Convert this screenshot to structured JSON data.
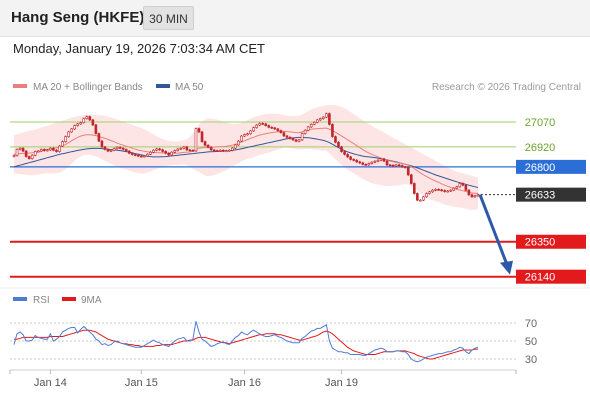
{
  "header": {
    "title": "Hang Seng (HKFE)",
    "interval": "30 MIN",
    "datetime": "Monday, January 19, 2026 7:03:34 AM CET"
  },
  "colors": {
    "ma20": "#ec7f7b",
    "bollinger_fill": "#fbe0df",
    "ma50": "#33579a",
    "candle": "#c0262c",
    "resistance": "#9fcf6b",
    "pivot": "#2b6fd6",
    "support": "#e31a1c",
    "last_price_bg": "#333333",
    "arrow": "#2d5aa8",
    "rsi": "#4f7ad6",
    "rsi_ma": "#e31a1c"
  },
  "chart_data": [
    {
      "type": "candlestick",
      "legend": [
        {
          "label": "MA 20 + Bollinger Bands",
          "color_key": "ma20"
        },
        {
          "label": "MA 50",
          "color_key": "ma50"
        }
      ],
      "watermark": "Research © 2026 Trading Central",
      "ylim": [
        26060,
        27250
      ],
      "x_ticks": [
        "Jan 14",
        "Jan 15",
        "Jan 16",
        "Jan 19"
      ],
      "levels": [
        {
          "value": 27070,
          "label": "27070",
          "kind": "resistance"
        },
        {
          "value": 26920,
          "label": "26920",
          "kind": "resistance"
        },
        {
          "value": 26800,
          "label": "26800",
          "kind": "pivot"
        },
        {
          "value": 26633,
          "label": "26633",
          "kind": "last"
        },
        {
          "value": 26350,
          "label": "26350",
          "kind": "support"
        },
        {
          "value": 26140,
          "label": "26140",
          "kind": "support"
        }
      ],
      "forecast": {
        "from": 26633,
        "to": 26140
      },
      "close": [
        26868,
        26905,
        26912,
        26895,
        26862,
        26850,
        26870,
        26892,
        26895,
        26905,
        26898,
        26902,
        26912,
        26900,
        26892,
        26925,
        26952,
        26982,
        27010,
        27028,
        27048,
        27058,
        27066,
        27090,
        27102,
        27082,
        27052,
        27000,
        26955,
        26920,
        26905,
        26895,
        26900,
        26910,
        26918,
        26912,
        26905,
        26895,
        26882,
        26874,
        26870,
        26865,
        26862,
        26865,
        26876,
        26888,
        26900,
        26908,
        26903,
        26893,
        26882,
        26872,
        26888,
        26898,
        26907,
        26912,
        26920,
        26902,
        26900,
        26896,
        27030,
        27010,
        26952,
        26930,
        26918,
        26902,
        26898,
        26896,
        26900,
        26895,
        26897,
        26900,
        26913,
        26932,
        26955,
        26985,
        26994,
        26999,
        27016,
        27036,
        27051,
        27061,
        27058,
        27048,
        27038,
        27034,
        27028,
        27018,
        27006,
        26986,
        26978,
        26970,
        26962,
        26954,
        26962,
        27000,
        27020,
        27040,
        27056,
        27068,
        27082,
        27090,
        27099,
        27120,
        27055,
        26982,
        26948,
        26920,
        26892,
        26875,
        26860,
        26845,
        26840,
        26830,
        26824,
        26815,
        26812,
        26820,
        26828,
        26834,
        26840,
        26848,
        26835,
        26812,
        26810,
        26805,
        26812,
        26808,
        26800,
        26797,
        26752,
        26700,
        26640,
        26600,
        26600,
        26620,
        26640,
        26650,
        26660,
        26665,
        26662,
        26658,
        26652,
        26655,
        26660,
        26672,
        26680,
        26700,
        26690,
        26660,
        26632,
        26620,
        26626,
        26633
      ],
      "ma20": [
        26875,
        26878,
        26880,
        26881,
        26882,
        26883,
        26885,
        26888,
        26892,
        26897,
        26901,
        26905,
        26908,
        26911,
        26914,
        26918,
        26926,
        26935,
        26946,
        26957,
        26968,
        26978,
        26985,
        26990,
        26993,
        26993,
        26991,
        26988,
        26983,
        26977,
        26971,
        26965,
        26958,
        26951,
        26943,
        26936,
        26930,
        26924,
        26918,
        26912,
        26906,
        26901,
        26897,
        26894,
        26891,
        26889,
        26887,
        26886,
        26885,
        26884,
        26883,
        26882,
        26882,
        26882,
        26883,
        26885,
        26887,
        26889,
        26890,
        26894,
        26904,
        26912,
        26915,
        26916,
        26917,
        26918,
        26919,
        26920,
        26921,
        26922,
        26924,
        26926,
        26930,
        26935,
        26941,
        26949,
        26957,
        26964,
        26971,
        26978,
        26985,
        26991,
        26996,
        27000,
        27003,
        27006,
        27009,
        27011,
        27013,
        27013,
        27012,
        27010,
        27008,
        27006,
        27006,
        27010,
        27016,
        27022,
        27026,
        27028,
        27030,
        27031,
        27032,
        27033,
        27027,
        27018,
        27008,
        26997,
        26986,
        26975,
        26963,
        26951,
        26940,
        26928,
        26916,
        26904,
        26893,
        26884,
        26875,
        26867,
        26860,
        26853,
        26846,
        26840,
        26835,
        26831,
        26827,
        26823,
        26820,
        26816,
        26810,
        26801,
        26790,
        26777,
        26764,
        26753,
        26742,
        26732,
        26723,
        26715,
        26707,
        26698,
        26690,
        26683,
        26676,
        26670,
        26665,
        26661,
        26657,
        26652,
        26647,
        26643,
        26642,
        26641
      ],
      "upper": [
        26990,
        26997,
        27002,
        27007,
        27012,
        27016,
        27020,
        27025,
        27030,
        27036,
        27042,
        27048,
        27054,
        27060,
        27066,
        27072,
        27078,
        27084,
        27090,
        27096,
        27100,
        27104,
        27108,
        27111,
        27113,
        27114,
        27114,
        27113,
        27112,
        27110,
        27106,
        27102,
        27097,
        27092,
        27086,
        27078,
        27071,
        27064,
        27058,
        27052,
        27046,
        27040,
        27034,
        27026,
        27016,
        27006,
        26995,
        26985,
        26976,
        26968,
        26962,
        26957,
        26954,
        26952,
        26954,
        26957,
        26960,
        26966,
        26980,
        27000,
        27030,
        27055,
        27072,
        27084,
        27090,
        27090,
        27088,
        27084,
        27078,
        27072,
        27066,
        27061,
        27058,
        27058,
        27060,
        27064,
        27072,
        27080,
        27090,
        27098,
        27104,
        27110,
        27115,
        27118,
        27120,
        27120,
        27120,
        27118,
        27116,
        27112,
        27108,
        27106,
        27105,
        27105,
        27108,
        27115,
        27125,
        27135,
        27145,
        27152,
        27158,
        27162,
        27166,
        27170,
        27172,
        27172,
        27170,
        27166,
        27160,
        27152,
        27142,
        27130,
        27118,
        27105,
        27092,
        27080,
        27068,
        27058,
        27048,
        27036,
        27026,
        27016,
        27006,
        26996,
        26986,
        26976,
        26966,
        26956,
        26946,
        26936,
        26926,
        26916,
        26906,
        26896,
        26886,
        26876,
        26866,
        26856,
        26846,
        26836,
        26826,
        26816,
        26806,
        26796,
        26787,
        26779,
        26772,
        26766,
        26761,
        26756,
        26751,
        26746,
        26741,
        26736
      ],
      "lower": [
        26760,
        26759,
        26758,
        26755,
        26752,
        26750,
        26750,
        26751,
        26754,
        26758,
        26760,
        26762,
        26762,
        26762,
        26762,
        26764,
        26774,
        26786,
        26802,
        26818,
        26836,
        26852,
        26862,
        26869,
        26873,
        26872,
        26868,
        26863,
        26854,
        26844,
        26836,
        26828,
        26819,
        26810,
        26800,
        26794,
        26789,
        26784,
        26778,
        26772,
        26766,
        26762,
        26760,
        26762,
        26766,
        26772,
        26779,
        26787,
        26794,
        26800,
        26804,
        26807,
        26810,
        26812,
        26812,
        26813,
        26814,
        26812,
        26800,
        26788,
        26778,
        26769,
        26758,
        26748,
        26744,
        26746,
        26750,
        26756,
        26764,
        26772,
        26782,
        26791,
        26802,
        26812,
        26822,
        26834,
        26842,
        26848,
        26852,
        26858,
        26866,
        26872,
        26877,
        26882,
        26886,
        26892,
        26898,
        26904,
        26910,
        26914,
        26916,
        26914,
        26911,
        26907,
        26904,
        26905,
        26907,
        26909,
        26907,
        26904,
        26902,
        26900,
        26898,
        26896,
        26882,
        26864,
        26846,
        26828,
        26812,
        26798,
        26784,
        26772,
        26762,
        26751,
        26740,
        26728,
        26718,
        26710,
        26702,
        26698,
        26694,
        26690,
        26686,
        26684,
        26684,
        26686,
        26688,
        26690,
        26694,
        26696,
        26694,
        26686,
        26674,
        26658,
        26642,
        26630,
        26618,
        26608,
        26600,
        26594,
        26588,
        26580,
        26574,
        26570,
        26565,
        26561,
        26558,
        26556,
        26553,
        26548,
        26543,
        26540,
        26543,
        26546
      ],
      "ma50": [
        26800,
        26805,
        26810,
        26815,
        26820,
        26825,
        26830,
        26835,
        26840,
        26845,
        26850,
        26855,
        26860,
        26865,
        26870,
        26875,
        26879,
        26883,
        26887,
        26891,
        26895,
        26899,
        26902,
        26905,
        26908,
        26910,
        26911,
        26911,
        26911,
        26910,
        26908,
        26906,
        26904,
        26902,
        26900,
        26898,
        26895,
        26892,
        26888,
        26884,
        26880,
        26876,
        26872,
        26868,
        26865,
        26862,
        26860,
        26860,
        26860,
        26861,
        26862,
        26864,
        26866,
        26868,
        26870,
        26872,
        26874,
        26876,
        26878,
        26880,
        26882,
        26884,
        26886,
        26888,
        26890,
        26891,
        26892,
        26893,
        26894,
        26895,
        26896,
        26897,
        26899,
        26902,
        26905,
        26909,
        26913,
        26917,
        26921,
        26925,
        26929,
        26933,
        26937,
        26941,
        26945,
        26949,
        26953,
        26957,
        26961,
        26965,
        26969,
        26972,
        26974,
        26976,
        26977,
        26977,
        26976,
        26975,
        26973,
        26970,
        26967,
        26963,
        26959,
        26954,
        26946,
        26936,
        26926,
        26916,
        26906,
        26898,
        26890,
        26884,
        26878,
        26873,
        26869,
        26865,
        26862,
        26860,
        26858,
        26856,
        26853,
        26850,
        26846,
        26842,
        26838,
        26834,
        26830,
        26825,
        26820,
        26816,
        26811,
        26806,
        26800,
        26794,
        26787,
        26780,
        26773,
        26766,
        26759,
        26752,
        26746,
        26740,
        26734,
        26728,
        26722,
        26716,
        26710,
        26705,
        26700,
        26695,
        26690,
        26685,
        26680,
        26676
      ]
    },
    {
      "type": "line",
      "legend": [
        {
          "label": "RSI",
          "color_key": "rsi"
        },
        {
          "label": "9MA",
          "color_key": "rsi_ma"
        }
      ],
      "ylim": [
        20,
        80
      ],
      "y_ticks": [
        "70",
        "50",
        "30"
      ],
      "y_tick_values": [
        70,
        50,
        30
      ],
      "rsi": [
        46,
        58,
        60,
        57,
        50,
        50,
        51,
        56,
        54,
        53,
        52,
        52,
        58,
        50,
        52,
        55,
        60,
        62,
        64,
        65,
        65,
        59,
        63,
        66,
        63,
        60,
        57,
        52,
        50,
        46,
        47,
        45,
        46,
        49,
        50,
        48,
        47,
        46,
        45,
        44,
        43,
        43,
        43,
        45,
        47,
        49,
        51,
        49,
        48,
        46,
        45,
        44,
        47,
        50,
        52,
        53,
        54,
        50,
        50,
        52,
        72,
        60,
        52,
        50,
        47,
        44,
        45,
        47,
        48,
        49,
        47,
        46,
        50,
        54,
        56,
        60,
        58,
        57,
        60,
        62,
        60,
        58,
        56,
        55,
        55,
        56,
        57,
        55,
        54,
        52,
        50,
        49,
        48,
        48,
        48,
        53,
        55,
        58,
        61,
        62,
        64,
        64,
        66,
        68,
        50,
        42,
        40,
        38,
        38,
        37,
        37,
        35,
        35,
        35,
        35,
        34,
        34,
        36,
        38,
        40,
        41,
        42,
        41,
        38,
        38,
        38,
        39,
        39,
        38,
        38,
        35,
        30,
        28,
        27,
        28,
        30,
        32,
        33,
        34,
        35,
        36,
        36,
        37,
        38,
        38,
        40,
        41,
        43,
        42,
        38,
        36,
        40,
        42,
        43
      ],
      "ma": [
        52,
        52,
        53,
        54,
        54,
        54,
        54,
        54,
        54,
        54,
        54,
        54,
        55,
        55,
        55,
        55,
        55,
        56,
        57,
        58,
        59,
        60,
        61,
        62,
        62,
        62,
        61,
        60,
        58,
        56,
        54,
        52,
        51,
        50,
        49,
        48,
        47,
        47,
        46,
        46,
        45,
        45,
        44,
        44,
        44,
        44,
        44,
        45,
        45,
        46,
        46,
        46,
        46,
        47,
        48,
        49,
        50,
        50,
        51,
        51,
        53,
        54,
        54,
        54,
        53,
        52,
        51,
        50,
        49,
        48,
        48,
        47,
        48,
        49,
        50,
        51,
        52,
        53,
        54,
        55,
        56,
        57,
        57,
        58,
        58,
        58,
        58,
        57,
        57,
        56,
        55,
        54,
        53,
        52,
        51,
        51,
        52,
        53,
        54,
        55,
        56,
        58,
        60,
        61,
        60,
        58,
        55,
        52,
        49,
        46,
        43,
        41,
        39,
        38,
        37,
        36,
        35,
        35,
        35,
        35,
        36,
        37,
        38,
        38,
        38,
        38,
        39,
        39,
        39,
        39,
        38,
        37,
        36,
        34,
        33,
        32,
        31,
        30,
        30,
        31,
        32,
        33,
        34,
        35,
        36,
        37,
        38,
        39,
        40,
        40,
        40,
        40,
        41,
        41
      ]
    }
  ]
}
